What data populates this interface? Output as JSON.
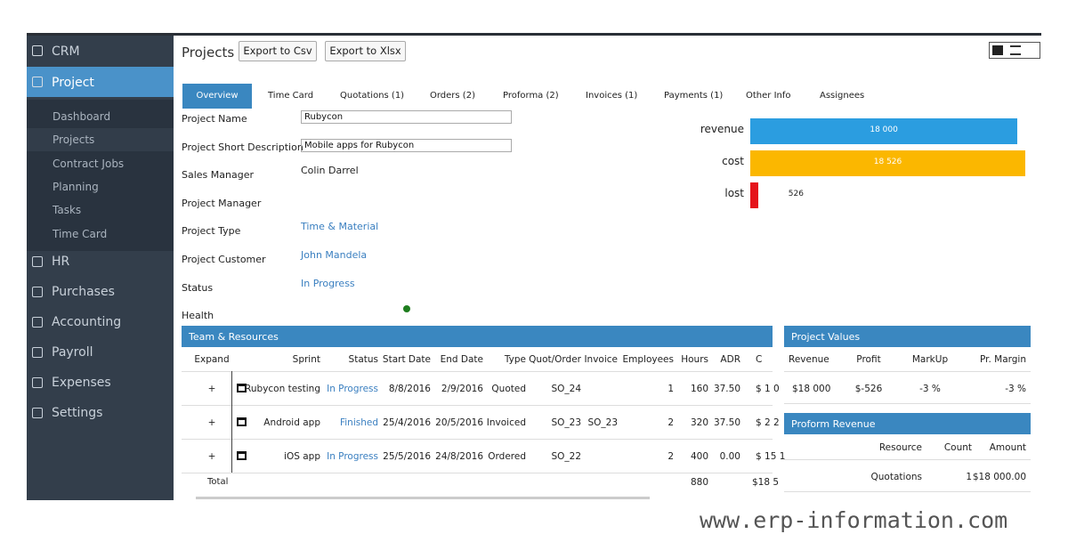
{
  "sidebar": {
    "top": [
      {
        "label": "CRM"
      },
      {
        "label": "Project",
        "active": true
      }
    ],
    "submenu": [
      {
        "label": "Dashboard"
      },
      {
        "label": "Projects",
        "active": true
      },
      {
        "label": "Contract Jobs"
      },
      {
        "label": "Planning"
      },
      {
        "label": "Tasks"
      },
      {
        "label": "Time Card"
      }
    ],
    "bottom": [
      {
        "label": "HR"
      },
      {
        "label": "Purchases"
      },
      {
        "label": "Accounting"
      },
      {
        "label": "Payroll"
      },
      {
        "label": "Expenses"
      },
      {
        "label": "Settings"
      }
    ]
  },
  "header": {
    "title": "Projects",
    "buttons": [
      "Export to Csv",
      "Export to Xlsx"
    ]
  },
  "tabs": {
    "items": [
      "Overview",
      "Time Card",
      "Quotations (1)",
      "Orders (2)",
      "Proforma (2)",
      "Invoices (1)",
      "Payments (1)",
      "Other Info",
      "Assignees"
    ],
    "active": 0
  },
  "fields": [
    {
      "label": "Project Name",
      "value": "Rubycon",
      "kind": "input"
    },
    {
      "label": "Project Short Description",
      "value": "Mobile apps for Rubycon",
      "kind": "input"
    },
    {
      "label": "Sales Manager",
      "value": "Colin Darrel",
      "kind": "text"
    },
    {
      "label": "Project Manager"
    },
    {
      "label": "Project Type",
      "value": "Time & Material",
      "kind": "link"
    },
    {
      "label": "Project Customer",
      "value": "John Mandela",
      "kind": "link"
    },
    {
      "label": "Status",
      "value": "In Progress",
      "kind": "link"
    },
    {
      "label": "Health"
    }
  ],
  "profit_chart": {
    "type": "bar",
    "categories": [
      "revenue",
      "cost",
      "lost"
    ],
    "values": [
      18000,
      18526,
      526
    ],
    "value_labels": [
      "18 000",
      "18 526",
      "526"
    ],
    "colors": [
      "#2b9de0",
      "#fbb700",
      "#e5141b"
    ]
  },
  "team": {
    "title": "Team & Resources",
    "columns": [
      "Expand",
      "Sprint",
      "Status",
      "Start Date",
      "End Date",
      "Type",
      "Quot/Order",
      "Invoice",
      "Employees",
      "Hours",
      "ADR",
      "C"
    ],
    "rows": [
      [
        "+",
        "Rubycon testing",
        "In Progress",
        "8/8/2016",
        "2/9/2016",
        "Quoted",
        "SO_24",
        null,
        "1",
        "160",
        "37.50",
        "$ 1 0"
      ],
      [
        "+",
        "Android app",
        "Finished",
        "25/4/2016",
        "20/5/2016",
        "Invoiced",
        "SO_23",
        "SO_23",
        "2",
        "320",
        "37.50",
        "$ 2 2"
      ],
      [
        "+",
        "iOS app",
        "In Progress",
        "25/5/2016",
        "24/8/2016",
        "Ordered",
        "SO_22",
        null,
        "2",
        "400",
        "0.00",
        "$ 15 1"
      ]
    ],
    "total": {
      "label": "Total",
      "hours": "880",
      "cost": "$18 5"
    }
  },
  "project_values": {
    "title": "Project Values",
    "columns": [
      "Revenue",
      "Profit",
      "MarkUp",
      "Pr. Margin"
    ],
    "row": [
      "$18 000",
      "$-526",
      "-3 %",
      "-3 %"
    ]
  },
  "proform_revenue": {
    "title": "Proform Revenue",
    "columns": [
      "Resource",
      "Count",
      "Amount"
    ],
    "row": [
      "Quotations",
      "1",
      "$18 000.00"
    ]
  },
  "watermark": "www.erp-information.com"
}
